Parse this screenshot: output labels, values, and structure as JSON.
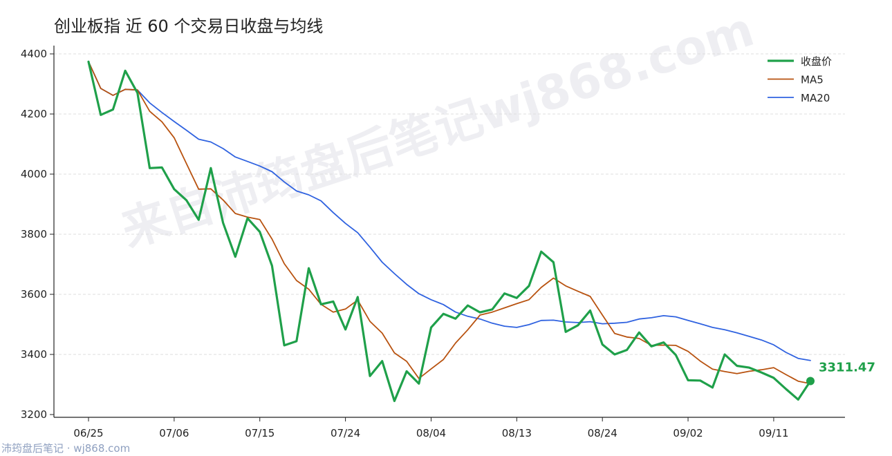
{
  "title": "创业板指 近 60 个交易日收盘与均线",
  "footer": "沛筠盘后笔记 · wj868.com",
  "watermark": "来自沛筠盘后笔记wj868.com",
  "colors": {
    "close": "#1fa04a",
    "ma5": "#b8520f",
    "ma20": "#2f62e0",
    "grid": "#dddddd",
    "axis": "#222222"
  },
  "chart_data": {
    "type": "line",
    "ylim": [
      3200,
      4400
    ],
    "yticks": [
      3200,
      3400,
      3600,
      3800,
      4000,
      4200,
      4400
    ],
    "xtick_labels": [
      "06/25",
      "07/06",
      "07/15",
      "07/24",
      "08/04",
      "08/13",
      "08/24",
      "09/02",
      "09/11"
    ],
    "xtick_index": [
      0,
      7,
      14,
      21,
      28,
      35,
      42,
      49,
      56
    ],
    "n_points": 60,
    "legend": {
      "position": "top-right",
      "entries": [
        "收盘价",
        "MA5",
        "MA20"
      ]
    },
    "last_value_label": "3311.47",
    "series": [
      {
        "name": "收盘价",
        "values": [
          4374,
          4197,
          4215,
          4344,
          4270,
          4020,
          4022,
          3950,
          3913,
          3848,
          4020,
          3838,
          3725,
          3853,
          3808,
          3695,
          3430,
          3444,
          3687,
          3567,
          3576,
          3483,
          3591,
          3328,
          3378,
          3245,
          3344,
          3303,
          3490,
          3535,
          3519,
          3563,
          3540,
          3550,
          3603,
          3588,
          3628,
          3742,
          3707,
          3475,
          3497,
          3546,
          3433,
          3400,
          3415,
          3473,
          3427,
          3440,
          3398,
          3314,
          3313,
          3290,
          3400,
          3362,
          3356,
          3340,
          3322,
          3285,
          3250,
          3311.47
        ]
      },
      {
        "name": "MA5",
        "values": [
          4374,
          4285,
          4262,
          4282,
          4280,
          4209,
          4174,
          4121,
          4035,
          3950,
          3951,
          3914,
          3869,
          3857,
          3849,
          3784,
          3702,
          3646,
          3617,
          3567,
          3541,
          3551,
          3581,
          3510,
          3471,
          3405,
          3377,
          3320,
          3352,
          3383,
          3438,
          3482,
          3531,
          3541,
          3555,
          3569,
          3582,
          3623,
          3654,
          3628,
          3610,
          3593,
          3531,
          3470,
          3458,
          3453,
          3430,
          3431,
          3430,
          3410,
          3378,
          3351,
          3343,
          3336,
          3344,
          3349,
          3356,
          3333,
          3311,
          3303
        ]
      },
      {
        "name": "MA20",
        "values": [
          4374,
          4285,
          4262,
          4282,
          4280,
          4237,
          4205,
          4175,
          4146,
          4116,
          4107,
          4085,
          4057,
          4042,
          4027,
          4008,
          3974,
          3944,
          3931,
          3911,
          3872,
          3836,
          3805,
          3757,
          3707,
          3669,
          3633,
          3602,
          3582,
          3566,
          3541,
          3527,
          3518,
          3504,
          3494,
          3490,
          3499,
          3513,
          3514,
          3508,
          3506,
          3509,
          3502,
          3504,
          3507,
          3518,
          3522,
          3529,
          3525,
          3513,
          3502,
          3490,
          3482,
          3472,
          3460,
          3448,
          3432,
          3407,
          3387,
          3380
        ]
      }
    ]
  }
}
